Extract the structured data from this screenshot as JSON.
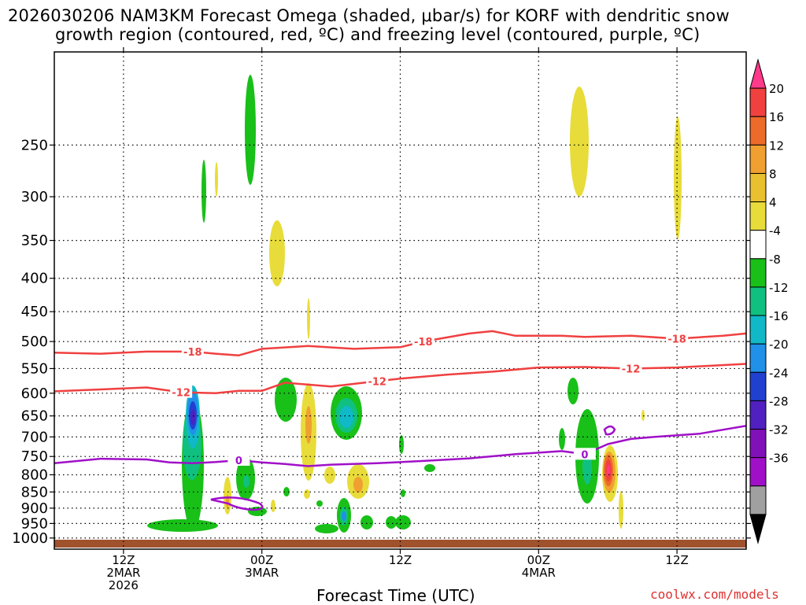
{
  "title_line1": "2026030206 NAM3KM Forecast Omega (shaded, μbar/s) for KORF with dendritic snow",
  "title_line2": "growth region (contoured, red, ºC) and freezing level (contoured, purple, ºC)",
  "x_axis_title": "Forecast Time (UTC)",
  "credit": "coolwx.com/models",
  "chart_data": {
    "type": "heatmap",
    "title": "2026030206 NAM3KM Forecast Omega (shaded, μbar/s) for KORF with dendritic snow growth region (contoured, red, ºC) and freezing level (contoured, purple, ºC)",
    "xlabel": "Forecast Time (UTC)",
    "ylabel": "",
    "y_axis_scale": "log-pressure, inverted",
    "y_ticks": [
      250,
      300,
      350,
      400,
      450,
      500,
      550,
      600,
      650,
      700,
      750,
      800,
      850,
      900,
      950,
      1000
    ],
    "x_ticks": [
      {
        "label": "12Z",
        "sub1": "2MAR",
        "sub2": "2026"
      },
      {
        "label": "00Z",
        "sub1": "3MAR",
        "sub2": ""
      },
      {
        "label": "12Z",
        "sub1": "",
        "sub2": ""
      },
      {
        "label": "00Z",
        "sub1": "4MAR",
        "sub2": ""
      },
      {
        "label": "12Z",
        "sub1": "",
        "sub2": ""
      }
    ],
    "x_tick_hours": [
      6,
      18,
      30,
      42,
      54
    ],
    "x_range_hours": [
      0,
      60
    ],
    "grid": true,
    "colorbar": {
      "labels": [
        "20",
        "16",
        "12",
        "8",
        "4",
        "-4",
        "-8",
        "-12",
        "-16",
        "-20",
        "-24",
        "-28",
        "-32",
        "-36"
      ],
      "colors": [
        "#ff3a8a",
        "#f04040",
        "#ec6a2a",
        "#f0a030",
        "#e8c030",
        "#e8dc3a",
        "#ffffff",
        "#18c018",
        "#10c080",
        "#10b8c8",
        "#2090e8",
        "#2040d0",
        "#5020c0",
        "#8010b8",
        "#a010c8",
        "#a0a0a0",
        "#000000"
      ]
    },
    "contours": [
      {
        "name": "-18",
        "color": "#f04040",
        "labels": [
          "-18",
          "-18",
          "-18"
        ],
        "points": [
          [
            0,
            520
          ],
          [
            4,
            522
          ],
          [
            8,
            518
          ],
          [
            12,
            518
          ],
          [
            14,
            522
          ],
          [
            16,
            525
          ],
          [
            18,
            513
          ],
          [
            22,
            508
          ],
          [
            26,
            513
          ],
          [
            30,
            510
          ],
          [
            32,
            500
          ],
          [
            36,
            486
          ],
          [
            38,
            482
          ],
          [
            40,
            490
          ],
          [
            44,
            490
          ],
          [
            46,
            492
          ],
          [
            50,
            490
          ],
          [
            54,
            495
          ],
          [
            58,
            490
          ],
          [
            60,
            486
          ]
        ]
      },
      {
        "name": "-12",
        "color": "#f04040",
        "labels": [
          "-12",
          "-12",
          "-12"
        ],
        "points": [
          [
            0,
            596
          ],
          [
            4,
            592
          ],
          [
            8,
            588
          ],
          [
            11,
            598
          ],
          [
            14,
            600
          ],
          [
            16,
            595
          ],
          [
            18,
            595
          ],
          [
            20,
            578
          ],
          [
            24,
            586
          ],
          [
            28,
            575
          ],
          [
            30,
            570
          ],
          [
            34,
            562
          ],
          [
            38,
            556
          ],
          [
            42,
            548
          ],
          [
            46,
            547
          ],
          [
            50,
            550
          ],
          [
            54,
            548
          ],
          [
            60,
            541
          ]
        ]
      },
      {
        "name": "0",
        "color": "#a010c8",
        "labels": [
          "0",
          "0"
        ],
        "points": [
          [
            0,
            768
          ],
          [
            4,
            756
          ],
          [
            8,
            758
          ],
          [
            10,
            766
          ],
          [
            12,
            768
          ],
          [
            14,
            765
          ],
          [
            16,
            760
          ],
          [
            18,
            766
          ],
          [
            20,
            770
          ],
          [
            22,
            776
          ],
          [
            24,
            772
          ],
          [
            28,
            768
          ],
          [
            32,
            762
          ],
          [
            36,
            755
          ],
          [
            40,
            744
          ],
          [
            42,
            740
          ],
          [
            44,
            736
          ],
          [
            46,
            744
          ],
          [
            48,
            718
          ],
          [
            50,
            705
          ],
          [
            52,
            700
          ],
          [
            56,
            692
          ],
          [
            60,
            673
          ]
        ]
      }
    ]
  }
}
